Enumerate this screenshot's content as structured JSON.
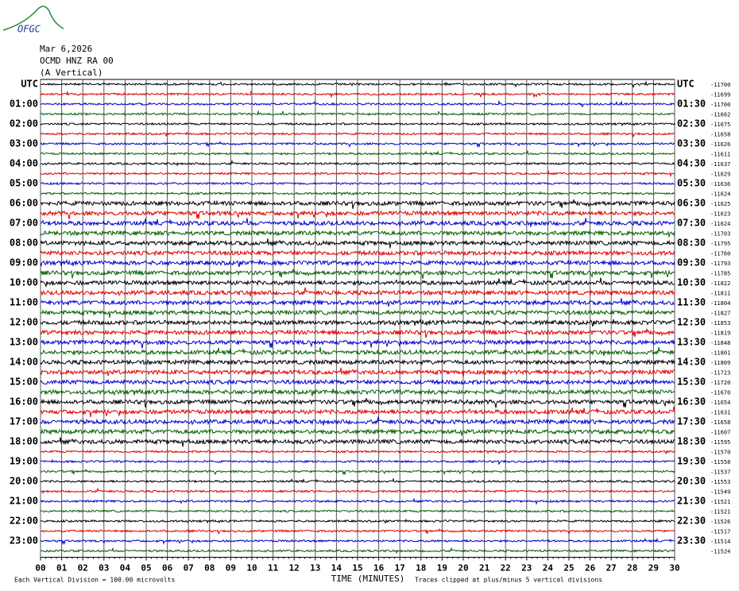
{
  "chart_data": {
    "type": "helicorder",
    "logo": "OFGC",
    "title_lines": [
      "Mar 6,2026",
      "OCMD HNZ RA 00",
      "(A Vertical)"
    ],
    "xlim": [
      0,
      30
    ],
    "xticks": [
      {
        "value": 0,
        "label": "00"
      },
      {
        "value": 1,
        "label": "01"
      },
      {
        "value": 2,
        "label": "02"
      },
      {
        "value": 3,
        "label": "03"
      },
      {
        "value": 4,
        "label": "04"
      },
      {
        "value": 5,
        "label": "05"
      },
      {
        "value": 6,
        "label": "06"
      },
      {
        "value": 7,
        "label": "07"
      },
      {
        "value": 8,
        "label": "08"
      },
      {
        "value": 9,
        "label": "09"
      },
      10,
      11,
      12,
      13,
      14,
      15,
      16,
      17,
      18,
      19,
      20,
      21,
      22,
      23,
      24,
      25,
      26,
      27,
      28,
      29,
      30
    ],
    "xlabel": "TIME (MINUTES)",
    "left_labels": [
      "UTC",
      "01:00",
      "02:00",
      "03:00",
      "04:00",
      "05:00",
      "06:00",
      "07:00",
      "08:00",
      "09:00",
      "10:00",
      "11:00",
      "12:00",
      "13:00",
      "14:00",
      "15:00",
      "16:00",
      "17:00",
      "18:00",
      "19:00",
      "20:00",
      "21:00",
      "22:00",
      "23:00"
    ],
    "right_labels": [
      "UTC",
      "01:30",
      "02:30",
      "03:30",
      "04:30",
      "05:30",
      "06:30",
      "07:30",
      "08:30",
      "09:30",
      "10:30",
      "11:30",
      "12:30",
      "13:30",
      "14:30",
      "15:30",
      "16:30",
      "17:30",
      "18:30",
      "19:30",
      "20:30",
      "21:30",
      "22:30",
      "23:30"
    ],
    "offsets": [
      -11700,
      -11699,
      -11700,
      -11662,
      -11675,
      -11658,
      -11626,
      -11611,
      -11637,
      -11629,
      -11636,
      -11624,
      -11625,
      -11623,
      -11624,
      -11703,
      -11795,
      -11760,
      -11793,
      -11785,
      -11822,
      -11811,
      -11804,
      -11827,
      -11853,
      -11819,
      -11848,
      -11801,
      -11809,
      -11723,
      -11720,
      -11670,
      -11654,
      -11631,
      -11658,
      -11607,
      -11595,
      -11570,
      -11558,
      -11537,
      -11553,
      -11549,
      -11521,
      -11521,
      -11526,
      -11517,
      -11514,
      -11524
    ],
    "trace_colors": [
      "#000000",
      "#e00000",
      "#0000d0",
      "#006000"
    ],
    "footer_left": "Each Vertical Division =  100.00 microvolts",
    "footer_right": "Traces clipped at plus/minus 5 vertical divisions"
  }
}
